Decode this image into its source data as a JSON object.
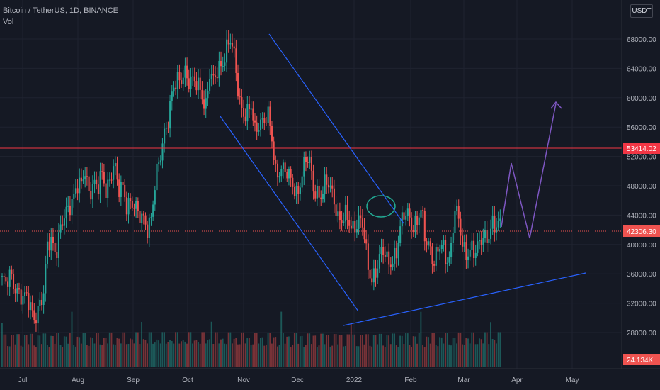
{
  "header": {
    "symbol_line": "Bitcoin / TetherUS, 1D, BINANCE",
    "volume_label": "Vol",
    "currency": "USDT"
  },
  "colors": {
    "background": "#151924",
    "up": "#26a69a",
    "down": "#ef5350",
    "horizontal_line": "#f23645",
    "channel": "#2962ff",
    "projection": "#7e57c2",
    "ellipse": "#22ab94"
  },
  "chart_data": {
    "type": "candlestick",
    "price_axis": [
      "68000.00",
      "64000.00",
      "60000.00",
      "56000.00",
      "52000.00",
      "48000.00",
      "44000.00",
      "40000.00",
      "36000.00",
      "32000.00",
      "28000.00"
    ],
    "time_axis": [
      "Jul",
      "Aug",
      "Sep",
      "Oct",
      "Nov",
      "Dec",
      "2022",
      "Feb",
      "Mar",
      "Apr",
      "May"
    ],
    "ylim": [
      26000,
      72000
    ],
    "resistance_level": "53414.02",
    "last_price": "42306.30",
    "volume_last": "24.134K",
    "series": [
      {
        "m": "2021-07",
        "close": [
          34700,
          33500,
          35200,
          34100,
          33200,
          31700,
          31800,
          30600,
          29800,
          31200,
          32100
        ]
      },
      {
        "m": "2021-08",
        "close": [
          39800,
          40500,
          38600,
          41300,
          42800,
          44700,
          46300,
          48000,
          47100,
          49300,
          46800,
          48700,
          47100,
          48800,
          47000
        ]
      },
      {
        "m": "2021-09",
        "close": [
          49100,
          51300,
          46500,
          47200,
          45300,
          46000,
          44600,
          42800,
          43200,
          42300,
          43600
        ]
      },
      {
        "m": "2021-10",
        "close": [
          48200,
          50900,
          55100,
          57400,
          60600,
          61500,
          62100,
          64200,
          62400,
          61800,
          61300,
          60900,
          58900
        ]
      },
      {
        "m": "2021-11",
        "close": [
          63200,
          61400,
          63800,
          64900,
          66900,
          67600,
          64900,
          60300,
          58200,
          57600,
          58100,
          54700,
          57200,
          56900,
          57300
        ]
      },
      {
        "m": "2021-12",
        "close": [
          53600,
          49200,
          50600,
          50100,
          48400,
          47600,
          46700,
          48900,
          50900,
          50800,
          47500,
          47000,
          46400,
          47700
        ]
      },
      {
        "m": "2022-01",
        "close": [
          47300,
          46200,
          43400,
          42600,
          43100,
          41900,
          42600,
          43100,
          41600,
          36400,
          35000,
          36200,
          37700,
          38200,
          36900,
          37900
        ]
      },
      {
        "m": "2022-02",
        "close": [
          38500,
          41600,
          43600,
          44000,
          42200,
          42500,
          43800,
          40000,
          40000,
          37000,
          38300,
          39200,
          37700,
          38400
        ]
      },
      {
        "m": "2022-03",
        "close": [
          44400,
          42400,
          39000,
          38700,
          39400,
          37800,
          39300,
          41100,
          40900,
          42200,
          41300,
          42306
        ]
      }
    ],
    "annotations": [
      "descending channel",
      "rising support trendline",
      "horizontal resistance",
      "projected zig-zag path"
    ]
  }
}
